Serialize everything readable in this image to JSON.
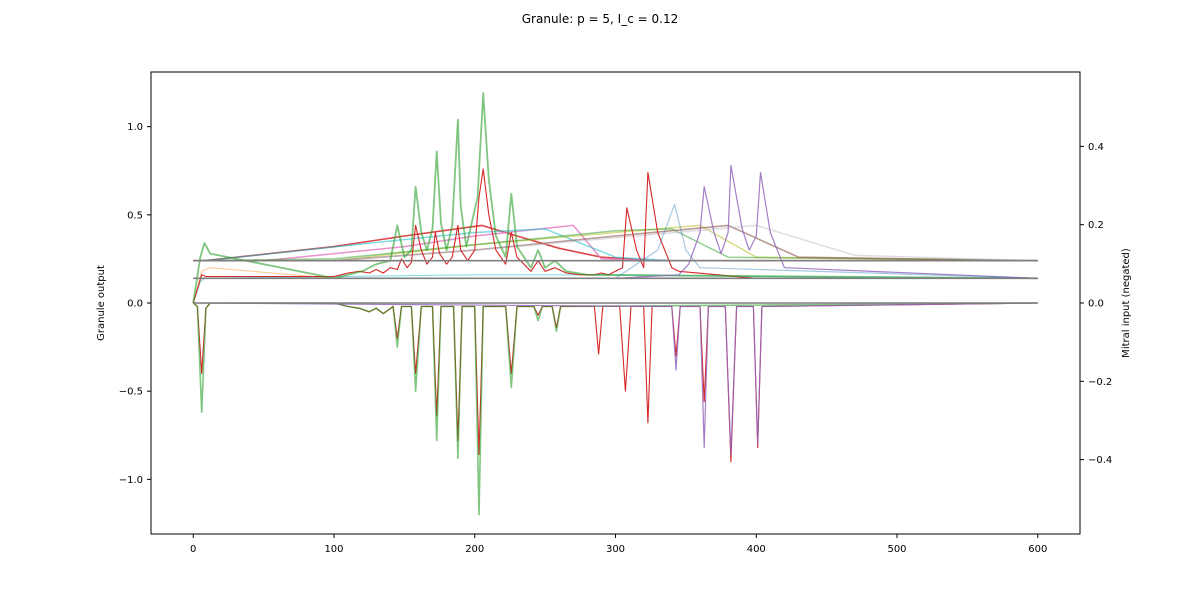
{
  "chart_data": {
    "type": "line",
    "title": "Granule: p = 5, I_c = 0.12",
    "xlabel": "",
    "ylabel": "Granule output",
    "y2label": "Mitral input (negated)",
    "xlim": [
      -30,
      630
    ],
    "ylim": [
      -1.31,
      1.31
    ],
    "y2lim": [
      -0.59,
      0.59
    ],
    "xticks": [
      0,
      100,
      200,
      300,
      400,
      500,
      600
    ],
    "yticks": [
      -1.0,
      -0.5,
      0.0,
      0.5,
      1.0
    ],
    "ytick_labels": [
      "−1.0",
      "−0.5",
      "0.0",
      "0.5",
      "1.0"
    ],
    "y2ticks": [
      -0.4,
      -0.2,
      0.0,
      0.2,
      0.4
    ],
    "y2tick_labels": [
      "−0.4",
      "−0.2",
      "0.0",
      "0.2",
      "0.4"
    ],
    "grid": false,
    "legend": "none",
    "colors": [
      "#d62728",
      "#2ca02c",
      "#9467bd",
      "#8c564b",
      "#e377c2",
      "#17becf",
      "#bcbd22",
      "#1f77b4",
      "#ff7f0e",
      "#7f7f7f"
    ],
    "series": [
      {
        "color": "#d62728",
        "opacity": 0.85,
        "width": 1.6,
        "x": [
          0,
          8,
          100,
          150,
          205,
          230,
          260,
          290,
          310,
          324,
          340,
          360,
          600
        ],
        "y": [
          0.24,
          0.24,
          0.32,
          0.38,
          0.44,
          0.38,
          0.31,
          0.26,
          0.25,
          0.24,
          0.24,
          0.24,
          0.24
        ]
      },
      {
        "color": "#e377c2",
        "opacity": 0.8,
        "width": 1.5,
        "x": [
          0,
          50,
          150,
          200,
          270,
          290,
          340,
          600
        ],
        "y": [
          0.24,
          0.24,
          0.32,
          0.38,
          0.44,
          0.25,
          0.24,
          0.24
        ]
      },
      {
        "color": "#17becf",
        "opacity": 0.55,
        "width": 1.5,
        "x": [
          0,
          8,
          150,
          200,
          250,
          300,
          340,
          600
        ],
        "y": [
          0.24,
          0.24,
          0.36,
          0.4,
          0.42,
          0.26,
          0.24,
          0.24
        ]
      },
      {
        "color": "#bcbd22",
        "opacity": 0.55,
        "width": 1.5,
        "x": [
          0,
          100,
          200,
          300,
          360,
          400,
          600
        ],
        "y": [
          0.24,
          0.24,
          0.33,
          0.4,
          0.44,
          0.26,
          0.24
        ]
      },
      {
        "color": "#2ca02c",
        "opacity": 0.5,
        "width": 1.5,
        "x": [
          0,
          100,
          200,
          300,
          340,
          380,
          600
        ],
        "y": [
          0.24,
          0.25,
          0.33,
          0.41,
          0.42,
          0.26,
          0.24
        ]
      },
      {
        "color": "#8c564b",
        "opacity": 0.6,
        "width": 1.6,
        "x": [
          0,
          100,
          200,
          300,
          380,
          430,
          600
        ],
        "y": [
          0.24,
          0.24,
          0.3,
          0.38,
          0.44,
          0.26,
          0.24
        ]
      },
      {
        "color": "#bbbbcc",
        "opacity": 0.5,
        "width": 1.5,
        "x": [
          0,
          100,
          200,
          300,
          400,
          470,
          600
        ],
        "y": [
          0.24,
          0.24,
          0.3,
          0.37,
          0.44,
          0.27,
          0.24
        ]
      },
      {
        "color": "#17becf",
        "opacity": 0.5,
        "width": 1.2,
        "x": [
          0,
          5,
          8,
          100,
          200,
          300,
          400,
          600
        ],
        "y": [
          0.0,
          0.12,
          0.14,
          0.15,
          0.16,
          0.16,
          0.15,
          0.14
        ]
      },
      {
        "color": "#ff7f0e",
        "opacity": 0.4,
        "width": 1.2,
        "x": [
          0,
          6,
          12,
          100,
          200,
          300,
          600
        ],
        "y": [
          0.0,
          0.18,
          0.2,
          0.14,
          0.14,
          0.14,
          0.14
        ]
      },
      {
        "color": "#d62728",
        "opacity": 1.0,
        "width": 1.1,
        "x": [
          0,
          6,
          9,
          100,
          105,
          110,
          118,
          125,
          130,
          135,
          140,
          145,
          148,
          152,
          155,
          158,
          162,
          166,
          170,
          172,
          175,
          180,
          184,
          188,
          190,
          195,
          200,
          203,
          206,
          210,
          215,
          222,
          226,
          230,
          240,
          245,
          250,
          257,
          265,
          275,
          285,
          290,
          295,
          305,
          308,
          315,
          320,
          323,
          330,
          340,
          345,
          400,
          600
        ],
        "y": [
          0.0,
          0.16,
          0.15,
          0.15,
          0.16,
          0.17,
          0.18,
          0.17,
          0.19,
          0.17,
          0.2,
          0.19,
          0.25,
          0.2,
          0.23,
          0.44,
          0.3,
          0.22,
          0.26,
          0.4,
          0.28,
          0.22,
          0.26,
          0.44,
          0.3,
          0.24,
          0.3,
          0.6,
          0.76,
          0.5,
          0.3,
          0.22,
          0.4,
          0.26,
          0.18,
          0.24,
          0.18,
          0.2,
          0.17,
          0.16,
          0.16,
          0.17,
          0.16,
          0.2,
          0.54,
          0.3,
          0.2,
          0.74,
          0.4,
          0.2,
          0.18,
          0.14,
          0.14
        ]
      },
      {
        "color": "#2ca02c",
        "opacity": 0.6,
        "width": 1.8,
        "x": [
          0,
          5,
          8,
          12,
          100,
          110,
          120,
          130,
          140,
          145,
          150,
          155,
          158,
          162,
          166,
          170,
          173,
          176,
          180,
          184,
          188,
          190,
          194,
          198,
          202,
          206,
          210,
          215,
          222,
          226,
          230,
          240,
          245,
          250,
          257,
          265,
          280,
          600
        ],
        "y": [
          0.0,
          0.26,
          0.34,
          0.28,
          0.14,
          0.16,
          0.18,
          0.22,
          0.24,
          0.44,
          0.26,
          0.3,
          0.66,
          0.4,
          0.3,
          0.42,
          0.86,
          0.45,
          0.3,
          0.44,
          1.04,
          0.55,
          0.32,
          0.46,
          0.6,
          1.19,
          0.7,
          0.38,
          0.26,
          0.62,
          0.32,
          0.2,
          0.3,
          0.2,
          0.24,
          0.18,
          0.16,
          0.14
        ]
      },
      {
        "color": "#9467bd",
        "opacity": 0.85,
        "width": 1.2,
        "x": [
          0,
          300,
          345,
          352,
          360,
          363,
          370,
          375,
          380,
          382,
          390,
          395,
          400,
          403,
          410,
          420,
          600
        ],
        "y": [
          0.14,
          0.14,
          0.16,
          0.22,
          0.4,
          0.66,
          0.4,
          0.28,
          0.4,
          0.78,
          0.42,
          0.3,
          0.38,
          0.74,
          0.4,
          0.2,
          0.14
        ]
      },
      {
        "color": "#1f77b4",
        "opacity": 0.4,
        "width": 1.2,
        "x": [
          0,
          300,
          330,
          342,
          350,
          360,
          600
        ],
        "y": [
          0.14,
          0.14,
          0.3,
          0.56,
          0.3,
          0.2,
          0.14
        ]
      },
      {
        "color": "#7f7f7f",
        "opacity": 1.0,
        "width": 1.6,
        "x": [
          0,
          600
        ],
        "y": [
          0.24,
          0.24
        ]
      },
      {
        "color": "#7f7f7f",
        "opacity": 1.0,
        "width": 1.6,
        "x": [
          0,
          100,
          600
        ],
        "y": [
          0.14,
          0.14,
          0.14
        ]
      },
      {
        "color": "#d62728",
        "opacity": 1.0,
        "width": 1.1,
        "x": [
          0,
          3,
          6,
          9,
          12,
          100,
          110,
          118,
          125,
          130,
          135,
          142,
          145,
          148,
          155,
          158,
          162,
          170,
          173,
          176,
          185,
          188,
          191,
          200,
          203,
          206,
          210,
          222,
          226,
          230,
          242,
          245,
          248,
          255,
          258,
          261,
          285,
          288,
          291,
          303,
          307,
          311,
          320,
          323,
          326,
          340,
          343,
          346,
          360,
          363,
          366,
          378,
          382,
          386,
          398,
          401,
          404,
          600
        ],
        "y": [
          0.0,
          -0.02,
          -0.4,
          -0.03,
          0.0,
          0.0,
          -0.02,
          -0.03,
          -0.05,
          -0.03,
          -0.06,
          -0.02,
          -0.2,
          -0.02,
          -0.02,
          -0.4,
          -0.02,
          -0.02,
          -0.64,
          -0.02,
          -0.02,
          -0.78,
          -0.02,
          -0.02,
          -0.86,
          -0.02,
          -0.02,
          -0.02,
          -0.4,
          -0.02,
          -0.02,
          -0.07,
          -0.02,
          -0.02,
          -0.14,
          -0.02,
          -0.02,
          -0.29,
          -0.02,
          -0.02,
          -0.5,
          -0.02,
          -0.02,
          -0.68,
          -0.02,
          -0.02,
          -0.3,
          -0.02,
          -0.02,
          -0.56,
          -0.02,
          -0.02,
          -0.9,
          -0.02,
          -0.02,
          -0.82,
          -0.02,
          0.0
        ]
      },
      {
        "color": "#2ca02c",
        "opacity": 0.6,
        "width": 1.6,
        "x": [
          0,
          3,
          6,
          9,
          12,
          100,
          110,
          118,
          125,
          130,
          135,
          142,
          145,
          148,
          155,
          158,
          162,
          170,
          173,
          176,
          185,
          188,
          191,
          200,
          203,
          206,
          210,
          222,
          226,
          230,
          242,
          245,
          248,
          255,
          258,
          261,
          600
        ],
        "y": [
          0.0,
          -0.02,
          -0.62,
          -0.03,
          0.0,
          0.0,
          -0.02,
          -0.03,
          -0.05,
          -0.03,
          -0.06,
          -0.02,
          -0.25,
          -0.02,
          -0.02,
          -0.5,
          -0.02,
          -0.02,
          -0.78,
          -0.02,
          -0.02,
          -0.88,
          -0.02,
          -0.02,
          -1.2,
          -0.02,
          -0.02,
          -0.02,
          -0.48,
          -0.02,
          -0.02,
          -0.1,
          -0.02,
          -0.02,
          -0.16,
          -0.02,
          0.0
        ]
      },
      {
        "color": "#9467bd",
        "opacity": 0.85,
        "width": 1.2,
        "x": [
          0,
          340,
          343,
          346,
          360,
          363,
          366,
          378,
          382,
          386,
          398,
          401,
          404,
          600
        ],
        "y": [
          0.0,
          -0.02,
          -0.38,
          -0.02,
          -0.02,
          -0.82,
          -0.02,
          -0.02,
          -0.86,
          -0.02,
          -0.02,
          -0.8,
          -0.02,
          0.0
        ]
      },
      {
        "color": "#7f7f7f",
        "opacity": 1.0,
        "width": 1.6,
        "x": [
          0,
          600
        ],
        "y": [
          0.0,
          0.0
        ]
      }
    ]
  }
}
